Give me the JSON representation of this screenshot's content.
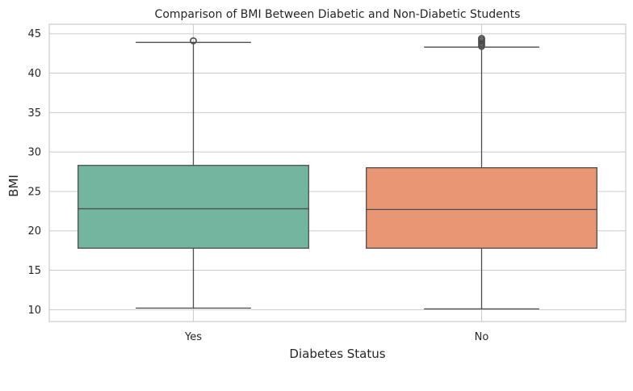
{
  "chart_data": {
    "type": "box",
    "title": "Comparison of BMI Between Diabetic and Non-Diabetic Students",
    "xlabel": "Diabetes Status",
    "ylabel": "BMI",
    "categories": [
      "Yes",
      "No"
    ],
    "ylim": [
      8.5,
      46.2
    ],
    "yticks": [
      10,
      15,
      20,
      25,
      30,
      35,
      40,
      45
    ],
    "grid": true,
    "series": [
      {
        "category": "Yes",
        "color": "#73b6a0",
        "whisker_low": 10.2,
        "q1": 17.8,
        "median": 22.8,
        "q3": 28.3,
        "whisker_high": 43.9,
        "outliers": [
          44.1
        ]
      },
      {
        "category": "No",
        "color": "#e99675",
        "whisker_low": 10.1,
        "q1": 17.8,
        "median": 22.7,
        "q3": 28.0,
        "whisker_high": 43.3,
        "outliers": [
          43.4,
          43.6,
          43.8,
          44.0,
          44.2,
          44.4
        ]
      }
    ],
    "colors": {
      "box_edge": "#4d4d4d",
      "grid": "#cccccc",
      "frame": "#cccccc",
      "text": "#262626"
    }
  }
}
